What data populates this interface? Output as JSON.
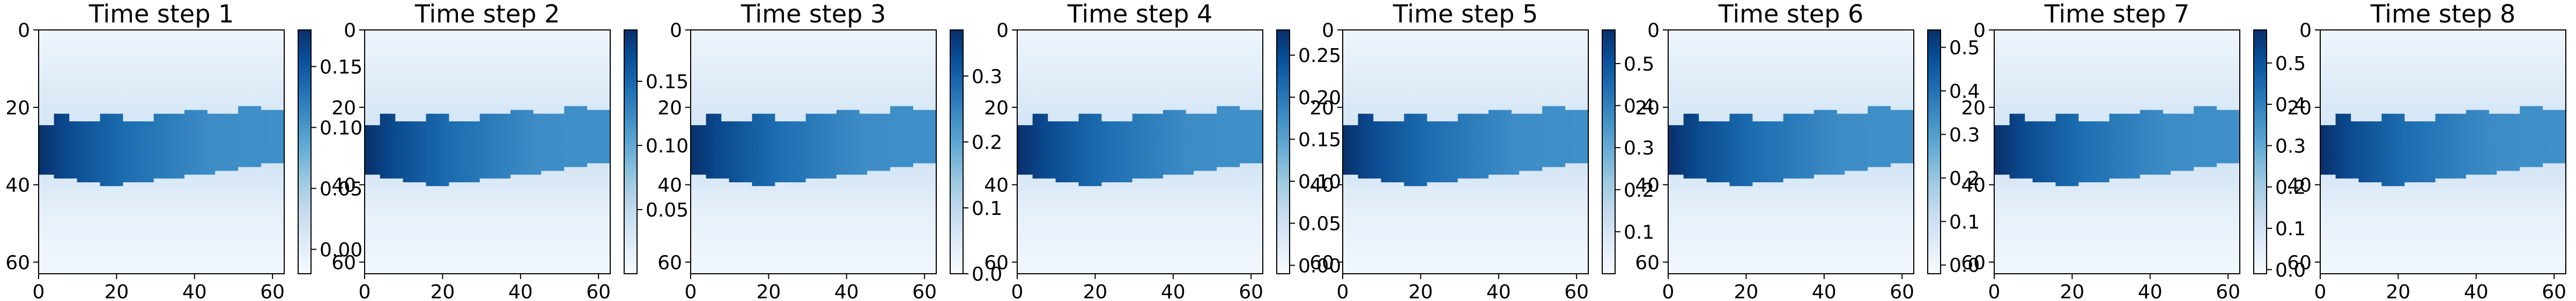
{
  "chart_data": [
    {
      "type": "heatmap",
      "title": "Time step 1",
      "x_ticks": [
        0,
        20,
        40,
        60
      ],
      "y_ticks": [
        0,
        20,
        40,
        60
      ],
      "xlim": [
        0,
        63
      ],
      "ylim": [
        0,
        63
      ],
      "colorbar": {
        "ticks": [
          0.0,
          0.05,
          0.1,
          0.15
        ],
        "tick_labels": [
          "0.00",
          "0.05",
          "0.10",
          "0.15"
        ],
        "range": [
          -0.02,
          0.18
        ],
        "cmap": "Blues"
      }
    },
    {
      "type": "heatmap",
      "title": "Time step 2",
      "x_ticks": [
        0,
        20,
        40,
        60
      ],
      "y_ticks": [
        0,
        20,
        40,
        60
      ],
      "xlim": [
        0,
        63
      ],
      "ylim": [
        0,
        63
      ],
      "colorbar": {
        "ticks": [
          0.05,
          0.1,
          0.15
        ],
        "tick_labels": [
          "0.05",
          "0.10",
          "0.15"
        ],
        "range": [
          0.0,
          0.19
        ],
        "cmap": "Blues"
      }
    },
    {
      "type": "heatmap",
      "title": "Time step 3",
      "x_ticks": [
        0,
        20,
        40,
        60
      ],
      "y_ticks": [
        0,
        20,
        40,
        60
      ],
      "xlim": [
        0,
        63
      ],
      "ylim": [
        0,
        63
      ],
      "colorbar": {
        "ticks": [
          0.0,
          0.1,
          0.2,
          0.3
        ],
        "tick_labels": [
          "0.0",
          "0.1",
          "0.2",
          "0.3"
        ],
        "range": [
          0.0,
          0.37
        ],
        "cmap": "Blues"
      }
    },
    {
      "type": "heatmap",
      "title": "Time step 4",
      "x_ticks": [
        0,
        20,
        40,
        60
      ],
      "y_ticks": [
        0,
        20,
        40,
        60
      ],
      "xlim": [
        0,
        63
      ],
      "ylim": [
        0,
        63
      ],
      "colorbar": {
        "ticks": [
          0.0,
          0.05,
          0.1,
          0.15,
          0.2,
          0.25
        ],
        "tick_labels": [
          "0.00",
          "0.05",
          "0.10",
          "0.15",
          "0.20",
          "0.25"
        ],
        "range": [
          -0.01,
          0.28
        ],
        "cmap": "Blues"
      }
    },
    {
      "type": "heatmap",
      "title": "Time step 5",
      "x_ticks": [
        0,
        20,
        40,
        60
      ],
      "y_ticks": [
        0,
        20,
        40,
        60
      ],
      "xlim": [
        0,
        63
      ],
      "ylim": [
        0,
        63
      ],
      "colorbar": {
        "ticks": [
          0.1,
          0.2,
          0.3,
          0.4,
          0.5
        ],
        "tick_labels": [
          "0.1",
          "0.2",
          "0.3",
          "0.4",
          "0.5"
        ],
        "range": [
          0.0,
          0.58
        ],
        "cmap": "Blues"
      }
    },
    {
      "type": "heatmap",
      "title": "Time step 6",
      "x_ticks": [
        0,
        20,
        40,
        60
      ],
      "y_ticks": [
        0,
        20,
        40,
        60
      ],
      "xlim": [
        0,
        63
      ],
      "ylim": [
        0,
        63
      ],
      "colorbar": {
        "ticks": [
          0.0,
          0.1,
          0.2,
          0.3,
          0.4,
          0.5
        ],
        "tick_labels": [
          "0.0",
          "0.1",
          "0.2",
          "0.3",
          "0.4",
          "0.5"
        ],
        "range": [
          -0.02,
          0.54
        ],
        "cmap": "Blues"
      }
    },
    {
      "type": "heatmap",
      "title": "Time step 7",
      "x_ticks": [
        0,
        20,
        40,
        60
      ],
      "y_ticks": [
        0,
        20,
        40,
        60
      ],
      "xlim": [
        0,
        63
      ],
      "ylim": [
        0,
        63
      ],
      "colorbar": {
        "ticks": [
          0.0,
          0.1,
          0.2,
          0.3,
          0.4,
          0.5
        ],
        "tick_labels": [
          "0.0",
          "0.1",
          "0.2",
          "0.3",
          "0.4",
          "0.5"
        ],
        "range": [
          -0.01,
          0.58
        ],
        "cmap": "Blues"
      }
    },
    {
      "type": "heatmap",
      "title": "Time step 8",
      "x_ticks": [
        0,
        20,
        40,
        60
      ],
      "y_ticks": [
        0,
        20,
        40,
        60
      ],
      "xlim": [
        0,
        63
      ],
      "ylim": [
        0,
        63
      ],
      "colorbar": {
        "ticks": [
          0.1,
          0.2,
          0.3,
          0.4,
          0.5
        ],
        "tick_labels": [
          "0.1",
          "0.2",
          "0.3",
          "0.4",
          "0.5"
        ],
        "range": [
          0.03,
          0.58
        ],
        "cmap": "Blues"
      }
    }
  ]
}
